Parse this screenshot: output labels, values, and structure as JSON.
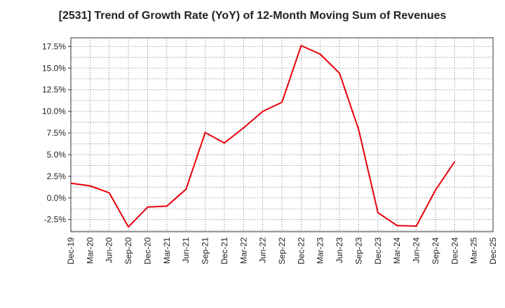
{
  "chart_data": {
    "type": "line",
    "title": "[2531]  Trend of Growth Rate (YoY) of 12-Month Moving Sum of Revenues",
    "xlabel": "",
    "ylabel": "",
    "x_tick_labels": [
      "Dec-19",
      "Mar-20",
      "Jun-20",
      "Sep-20",
      "Dec-20",
      "Mar-21",
      "Jun-21",
      "Sep-21",
      "Dec-21",
      "Mar-22",
      "Jun-22",
      "Sep-22",
      "Dec-22",
      "Mar-23",
      "Jun-23",
      "Sep-23",
      "Dec-23",
      "Mar-24",
      "Jun-24",
      "Sep-24",
      "Dec-24",
      "Mar-25",
      "Dec-25"
    ],
    "y_ticks": [
      -2.5,
      0.0,
      2.5,
      5.0,
      7.5,
      10.0,
      12.5,
      15.0,
      17.5
    ],
    "y_tick_labels": [
      "-2.5%",
      "0.0%",
      "2.5%",
      "5.0%",
      "7.5%",
      "10.0%",
      "12.5%",
      "15.0%",
      "17.5%"
    ],
    "ylim": [
      -3.9,
      18.5
    ],
    "grid": true,
    "series": [
      {
        "color": "#e8000b",
        "x": [
          "Dec-19",
          "Mar-20",
          "Jun-20",
          "Sep-20",
          "Dec-20",
          "Mar-21",
          "Jun-21",
          "Sep-21",
          "Dec-21",
          "Mar-22",
          "Jun-22",
          "Sep-22",
          "Dec-22",
          "Mar-23",
          "Jun-23",
          "Sep-23",
          "Dec-23",
          "Mar-24",
          "Jun-24",
          "Sep-24",
          "Dec-24"
        ],
        "values": [
          1.7,
          1.4,
          0.6,
          -3.35,
          -1.05,
          -0.95,
          1.0,
          7.55,
          6.35,
          8.1,
          10.0,
          11.05,
          17.6,
          16.6,
          14.4,
          7.85,
          -1.7,
          -3.2,
          -3.25,
          0.9,
          4.2
        ]
      }
    ]
  }
}
